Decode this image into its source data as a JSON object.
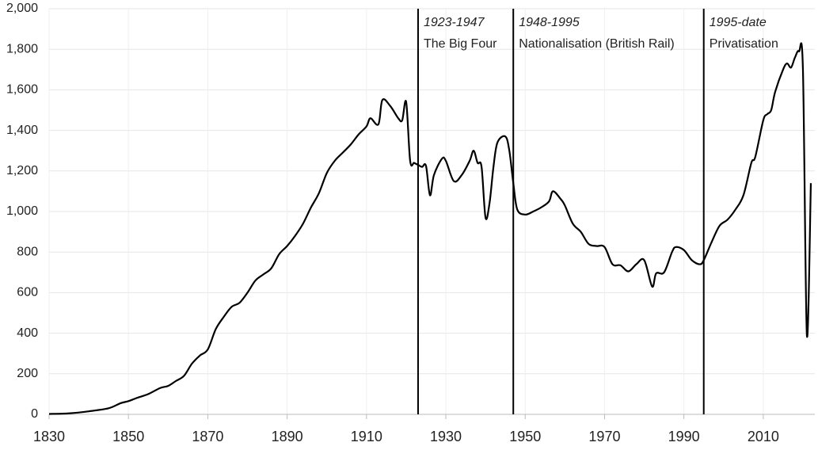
{
  "chart_data": {
    "type": "line",
    "x": [
      1830,
      1835,
      1840,
      1845,
      1848,
      1850,
      1852,
      1855,
      1858,
      1860,
      1862,
      1864,
      1866,
      1868,
      1870,
      1872,
      1874,
      1876,
      1878,
      1880,
      1882,
      1884,
      1886,
      1888,
      1890,
      1892,
      1894,
      1896,
      1898,
      1900,
      1902,
      1904,
      1906,
      1908,
      1910,
      1911,
      1913,
      1914,
      1916,
      1918,
      1919,
      1920,
      1921,
      1922,
      1923,
      1924,
      1925,
      1926,
      1927,
      1929,
      1930,
      1932,
      1934,
      1936,
      1937,
      1938,
      1939,
      1940,
      1941,
      1942,
      1943,
      1945,
      1946,
      1947,
      1948,
      1950,
      1952,
      1954,
      1956,
      1957,
      1959,
      1960,
      1962,
      1964,
      1966,
      1968,
      1970,
      1972,
      1974,
      1976,
      1978,
      1980,
      1982,
      1983,
      1985,
      1987,
      1988,
      1990,
      1992,
      1994,
      1995,
      1997,
      1999,
      2001,
      2003,
      2005,
      2007,
      2008,
      2010,
      2011,
      2012,
      2013,
      2015,
      2016,
      2017,
      2018,
      2019,
      2020,
      2021,
      2022
    ],
    "values": [
      2,
      5,
      15,
      30,
      55,
      65,
      80,
      100,
      130,
      140,
      165,
      190,
      250,
      290,
      320,
      420,
      480,
      530,
      550,
      600,
      660,
      690,
      720,
      790,
      830,
      880,
      940,
      1020,
      1090,
      1190,
      1250,
      1290,
      1330,
      1380,
      1420,
      1460,
      1430,
      1550,
      1520,
      1460,
      1450,
      1540,
      1250,
      1240,
      1230,
      1220,
      1225,
      1080,
      1180,
      1260,
      1250,
      1150,
      1180,
      1250,
      1300,
      1240,
      1220,
      970,
      1040,
      1220,
      1340,
      1370,
      1300,
      1140,
      1010,
      985,
      1000,
      1020,
      1050,
      1100,
      1060,
      1030,
      940,
      900,
      840,
      830,
      825,
      740,
      735,
      705,
      740,
      760,
      630,
      695,
      700,
      800,
      825,
      810,
      760,
      740,
      760,
      850,
      930,
      960,
      1010,
      1080,
      1240,
      1270,
      1450,
      1480,
      1500,
      1590,
      1700,
      1730,
      1710,
      1760,
      1790,
      1700,
      390,
      1140
    ],
    "color": "#000000",
    "xlim": [
      1830,
      2023
    ],
    "xticks": [
      1830,
      1850,
      1870,
      1890,
      1910,
      1930,
      1950,
      1970,
      1990,
      2010
    ],
    "ylim": [
      0,
      2000
    ],
    "yticks": [
      0,
      200,
      400,
      600,
      800,
      {
        "value": 1000,
        "label": "1,000"
      },
      {
        "value": 1200,
        "label": "1,200"
      },
      {
        "value": 1400,
        "label": "1,400"
      },
      {
        "value": 1600,
        "label": "1,600"
      },
      {
        "value": 1800,
        "label": "1,800"
      },
      {
        "value": 2000,
        "label": "2,000"
      }
    ],
    "grid": true,
    "markers": [
      {
        "x": 1923,
        "years": "1923-1947",
        "name": "The Big Four"
      },
      {
        "x": 1947,
        "years": "1948-1995",
        "name": "Nationalisation (British Rail)"
      },
      {
        "x": 1995,
        "years": "1995-date",
        "name": "Privatisation"
      }
    ]
  }
}
